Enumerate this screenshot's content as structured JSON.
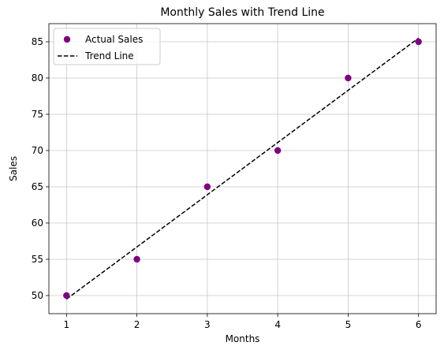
{
  "chart_data": {
    "type": "scatter",
    "title": "Monthly Sales with Trend Line",
    "xlabel": "Months",
    "ylabel": "Sales",
    "xlim": [
      0.75,
      6.25
    ],
    "ylim": [
      47.5,
      87.5
    ],
    "xticks": [
      1,
      2,
      3,
      4,
      5,
      6
    ],
    "yticks": [
      50,
      55,
      60,
      65,
      70,
      75,
      80,
      85
    ],
    "grid": true,
    "legend_position": "top-left",
    "series": [
      {
        "name": "Actual Sales",
        "kind": "scatter",
        "color": "#800080",
        "x": [
          1,
          2,
          3,
          4,
          5,
          6
        ],
        "y": [
          50,
          55,
          65,
          70,
          80,
          85
        ]
      },
      {
        "name": "Trend Line",
        "kind": "line",
        "style": "dashed",
        "color": "#000000",
        "x": [
          1,
          6
        ],
        "y": [
          49.5,
          85.5
        ]
      }
    ]
  }
}
